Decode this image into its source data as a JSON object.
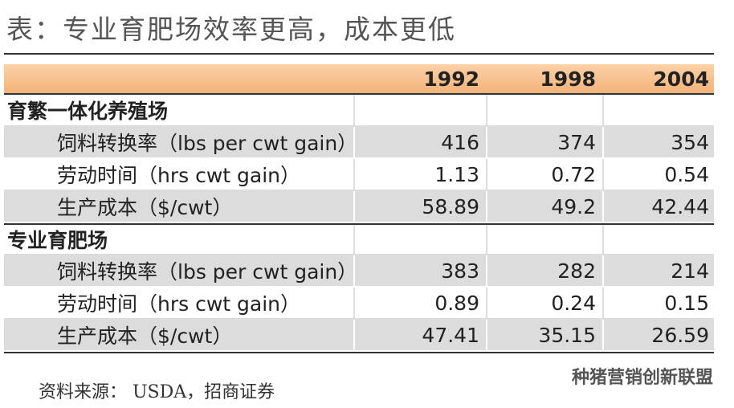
{
  "title": "表：专业育肥场效率更高，成本更低",
  "table": {
    "columns": [
      "1992",
      "1998",
      "2004"
    ],
    "sections": [
      {
        "name": "育繁一体化养殖场",
        "rows": [
          {
            "label": "饲料转换率（lbs per cwt gain）",
            "values": [
              "416",
              "374",
              "354"
            ]
          },
          {
            "label": "劳动时间（hrs cwt gain）",
            "values": [
              "1.13",
              "0.72",
              "0.54"
            ]
          },
          {
            "label": "生产成本（$/cwt）",
            "values": [
              "58.89",
              "49.2",
              "42.44"
            ]
          }
        ]
      },
      {
        "name": "专业育肥场",
        "rows": [
          {
            "label": "饲料转换率（lbs per cwt gain）",
            "values": [
              "383",
              "282",
              "214"
            ]
          },
          {
            "label": "劳动时间（hrs cwt gain）",
            "values": [
              "0.89",
              "0.24",
              "0.15"
            ]
          },
          {
            "label": "生产成本（$/cwt）",
            "values": [
              "47.41",
              "35.15",
              "26.59"
            ]
          }
        ]
      }
    ]
  },
  "footer": {
    "source": "资料来源： USDA，招商证券",
    "watermark": "种猪营销创新联盟"
  }
}
